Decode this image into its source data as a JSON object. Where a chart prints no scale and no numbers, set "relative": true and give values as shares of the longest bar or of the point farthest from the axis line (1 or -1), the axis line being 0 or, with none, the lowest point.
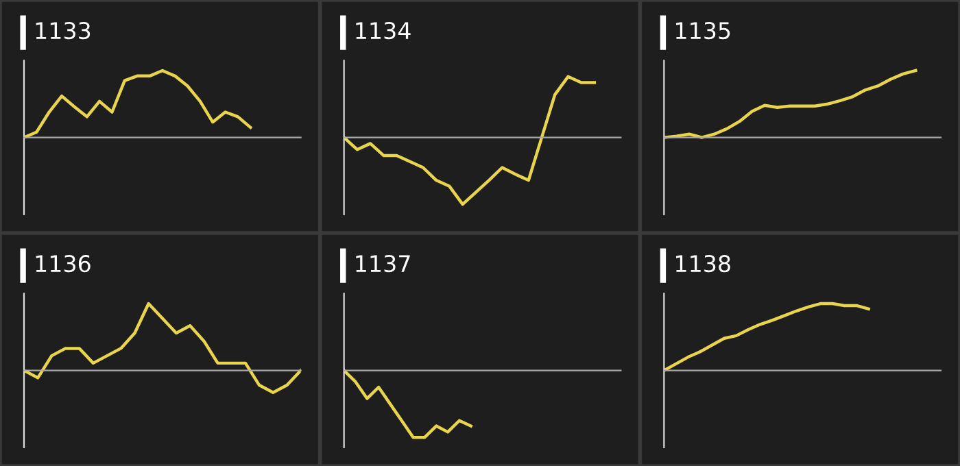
{
  "chart_data": [
    {
      "type": "line",
      "title": "1133",
      "relative": true,
      "categories": [
        null,
        null,
        null,
        null,
        null,
        null,
        null,
        null,
        null,
        null,
        null,
        null,
        null,
        null,
        null,
        null,
        null,
        null,
        null,
        null,
        null,
        null,
        null
      ],
      "series": [
        {
          "color": "#e8d44d",
          "values": [
            0,
            0.08,
            0.38,
            0.62,
            0.46,
            0.31,
            0.54,
            0.38,
            0.85,
            0.92,
            0.92,
            1,
            0.92,
            0.77,
            0.54,
            0.23,
            0.38,
            0.31,
            0.15,
            null,
            null,
            null,
            null
          ]
        }
      ]
    },
    {
      "type": "line",
      "title": "1134",
      "relative": true,
      "categories": [
        null,
        null,
        null,
        null,
        null,
        null,
        null,
        null,
        null,
        null,
        null,
        null,
        null,
        null,
        null,
        null,
        null,
        null,
        null,
        null,
        null,
        null
      ],
      "series": [
        {
          "color": "#e8d44d",
          "values": [
            0,
            -0.18,
            -0.09,
            -0.27,
            -0.27,
            -0.36,
            -0.45,
            -0.64,
            -0.73,
            -1,
            -0.82,
            -0.64,
            -0.45,
            -0.55,
            -0.64,
            0,
            0.64,
            0.91,
            0.82,
            0.82,
            null,
            null
          ]
        }
      ]
    },
    {
      "type": "line",
      "title": "1135",
      "relative": true,
      "categories": [
        null,
        null,
        null,
        null,
        null,
        null,
        null,
        null,
        null,
        null,
        null,
        null,
        null,
        null,
        null,
        null,
        null,
        null,
        null,
        null,
        null,
        null,
        null
      ],
      "series": [
        {
          "color": "#e8d44d",
          "values": [
            0,
            0.02,
            0.05,
            0,
            0.05,
            0.13,
            0.24,
            0.39,
            0.48,
            0.45,
            0.47,
            0.47,
            0.47,
            0.5,
            0.55,
            0.61,
            0.71,
            0.77,
            0.87,
            0.95,
            1,
            null,
            null
          ]
        }
      ]
    },
    {
      "type": "line",
      "title": "1136",
      "relative": true,
      "categories": [
        null,
        null,
        null,
        null,
        null,
        null,
        null,
        null,
        null,
        null,
        null,
        null,
        null,
        null,
        null,
        null,
        null,
        null,
        null,
        null,
        null
      ],
      "series": [
        {
          "color": "#e8d44d",
          "values": [
            0,
            -0.11,
            0.22,
            0.33,
            0.33,
            0.11,
            0.22,
            0.33,
            0.56,
            1,
            0.78,
            0.56,
            0.67,
            0.44,
            0.11,
            0.11,
            0.11,
            -0.22,
            -0.33,
            -0.22,
            0
          ]
        }
      ]
    },
    {
      "type": "line",
      "title": "1137",
      "relative": true,
      "categories": [
        null,
        null,
        null,
        null,
        null,
        null,
        null,
        null,
        null,
        null,
        null,
        null,
        null,
        null,
        null,
        null,
        null,
        null,
        null,
        null,
        null,
        null,
        null,
        null,
        null
      ],
      "series": [
        {
          "color": "#e8d44d",
          "values": [
            0,
            -0.17,
            -0.42,
            -0.25,
            -0.5,
            -0.75,
            -1,
            -1,
            -0.83,
            -0.92,
            -0.75,
            -0.83,
            null,
            null,
            null,
            null,
            null,
            null,
            null,
            null,
            null,
            null,
            null,
            null,
            null
          ]
        }
      ]
    },
    {
      "type": "line",
      "title": "1138",
      "relative": true,
      "categories": [
        null,
        null,
        null,
        null,
        null,
        null,
        null,
        null,
        null,
        null,
        null,
        null,
        null,
        null,
        null,
        null,
        null,
        null,
        null,
        null,
        null,
        null,
        null,
        null
      ],
      "series": [
        {
          "color": "#e8d44d",
          "values": [
            0,
            0.1,
            0.2,
            0.28,
            0.38,
            0.48,
            0.52,
            0.61,
            0.69,
            0.75,
            0.82,
            0.89,
            0.95,
            1,
            1,
            0.97,
            0.97,
            0.92,
            null,
            null,
            null,
            null,
            null,
            null
          ]
        }
      ]
    }
  ]
}
